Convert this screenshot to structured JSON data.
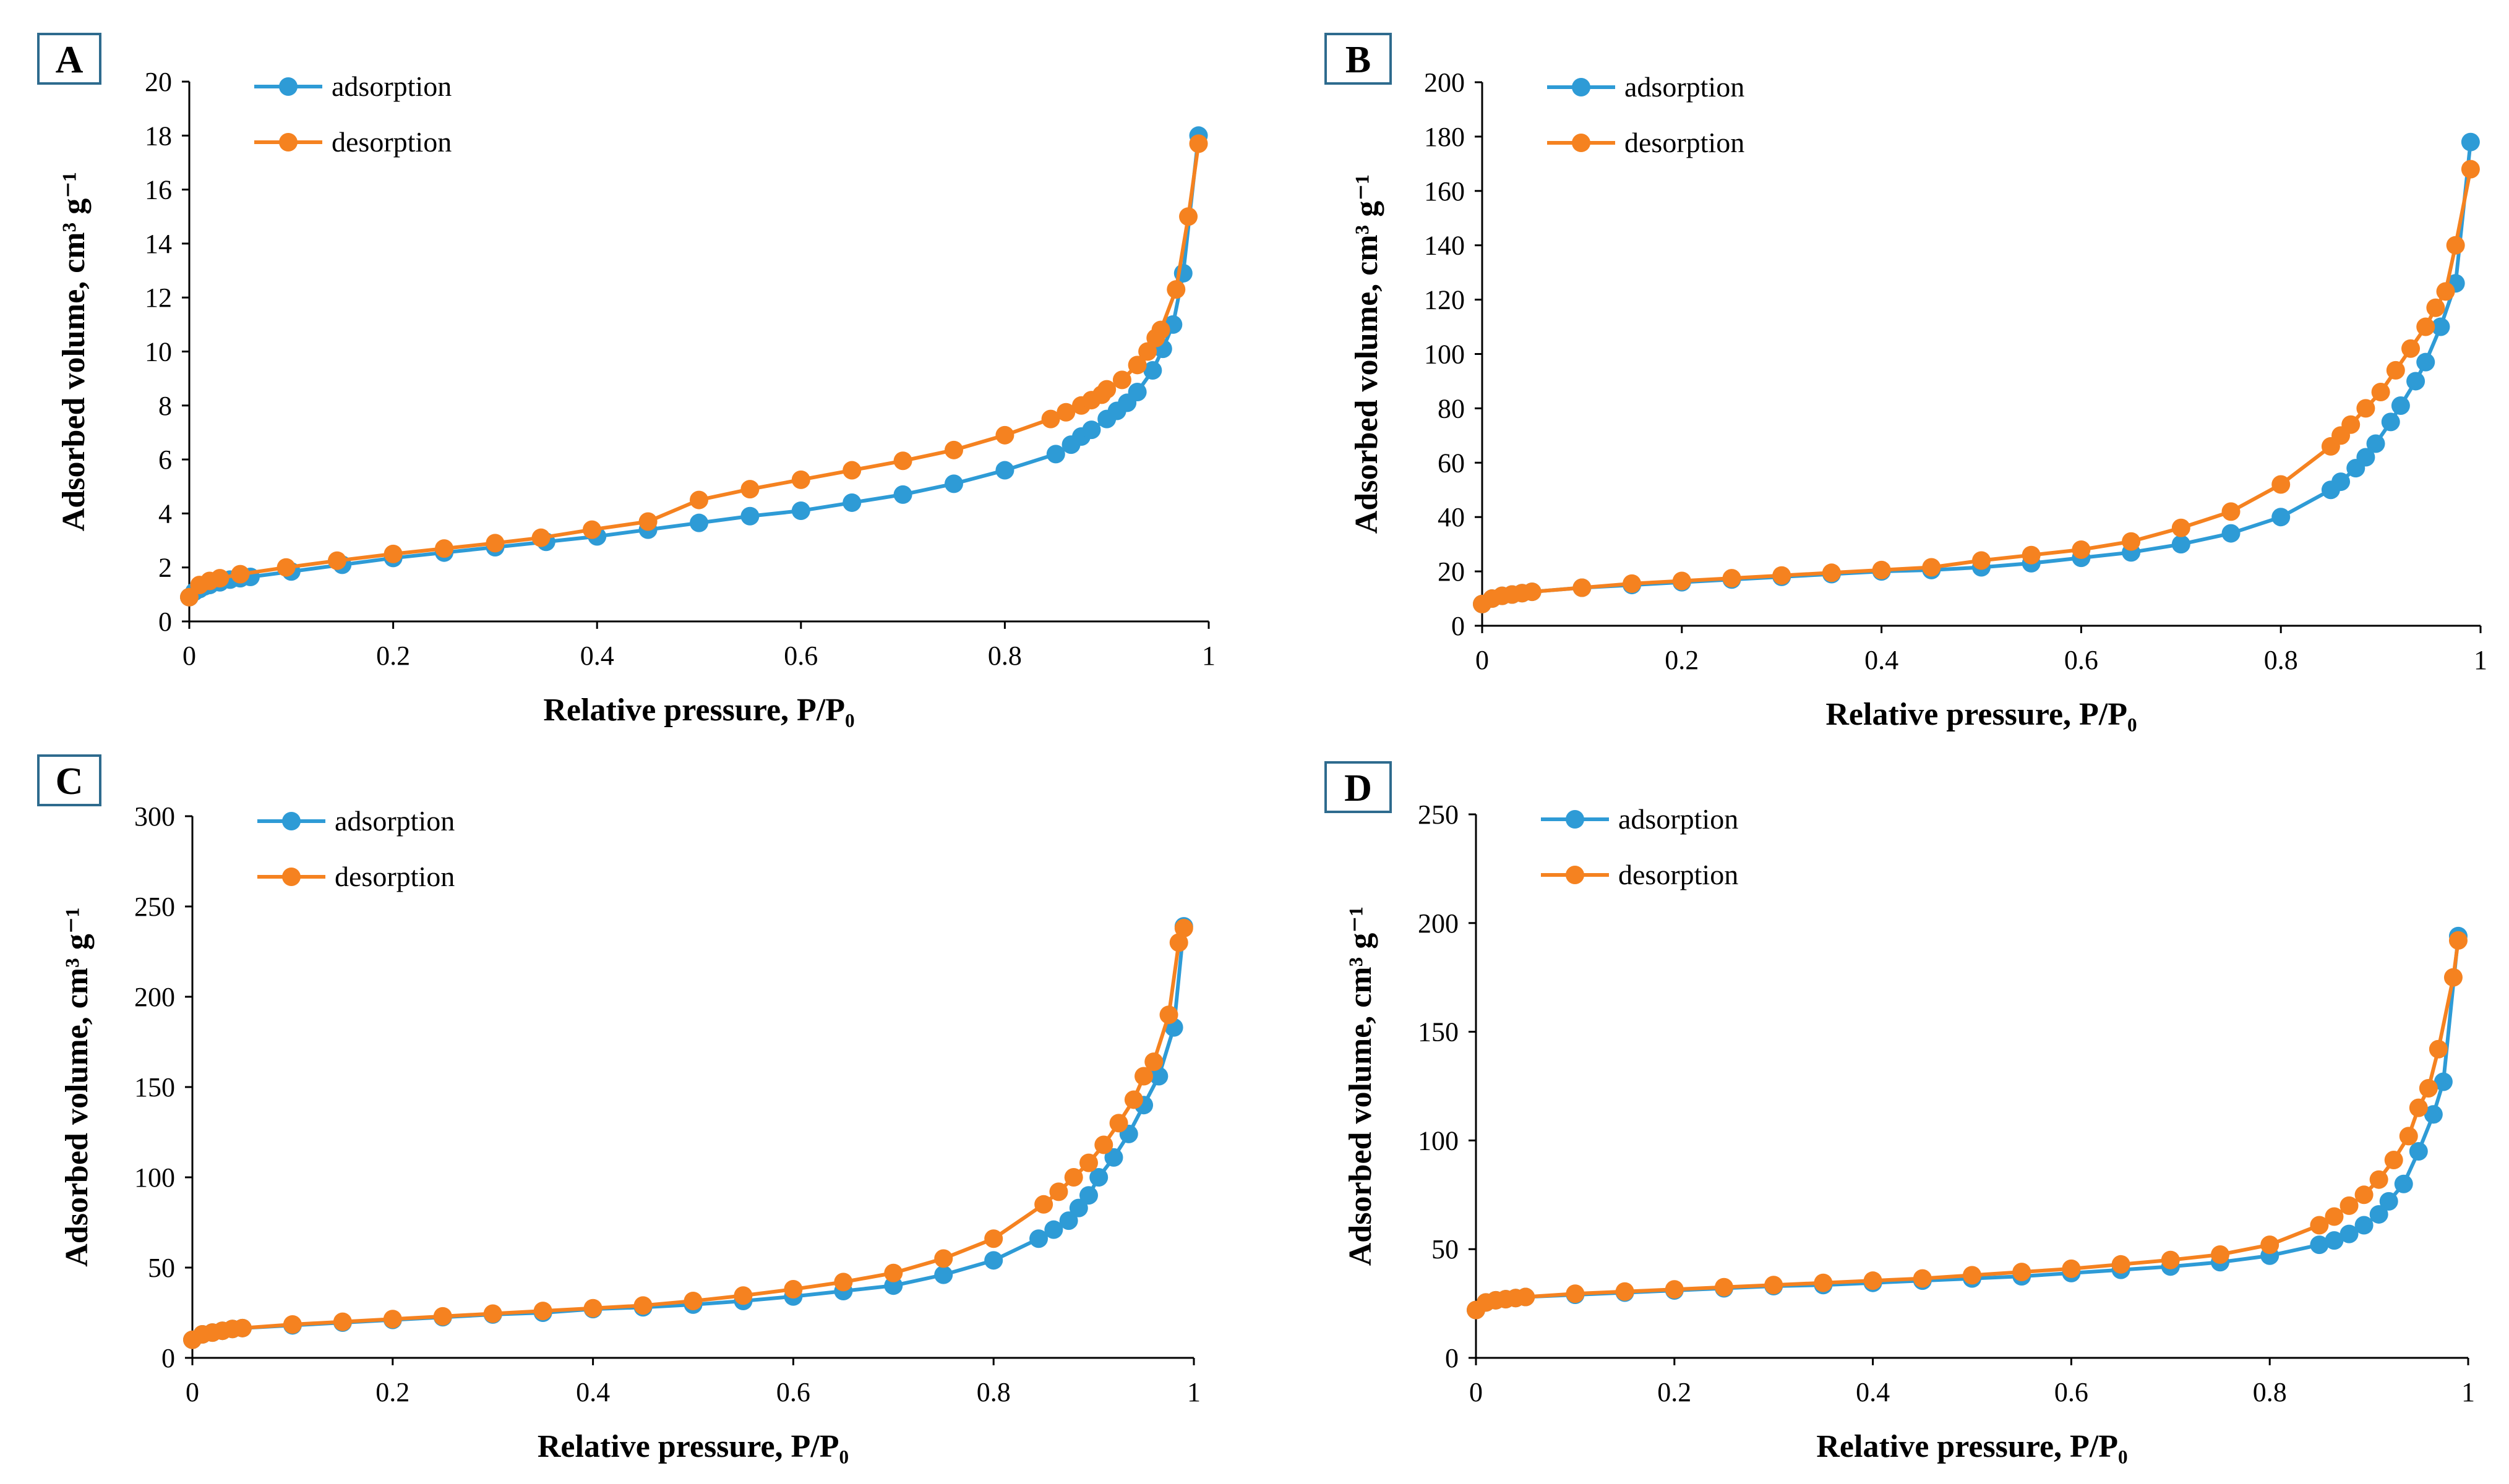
{
  "colors": {
    "adsorption": "#2e9bd6",
    "desorption": "#f58220"
  },
  "chart_data": [
    {
      "panel": "A",
      "type": "line",
      "xlabel": "Relative pressure, P/P₀",
      "ylabel": "Adsorbed volume, cm³ g⁻¹",
      "xlim": [
        0,
        1
      ],
      "ylim": [
        0,
        20
      ],
      "xticks": [
        0,
        0.2,
        0.4,
        0.6,
        0.8,
        1
      ],
      "xtick_labels": [
        "0",
        "0.2",
        "0.4",
        "0.6",
        "0.8",
        "1"
      ],
      "yticks": [
        0,
        2,
        4,
        6,
        8,
        10,
        12,
        14,
        16,
        18,
        20
      ],
      "ytick_labels": [
        "0",
        "2",
        "4",
        "6",
        "8",
        "10",
        "12",
        "14",
        "16",
        "18",
        "20"
      ],
      "legend_position": "top-left",
      "series": [
        {
          "name": "adsorption",
          "x": [
            0,
            0.005,
            0.01,
            0.015,
            0.02,
            0.03,
            0.04,
            0.05,
            0.06,
            0.1,
            0.15,
            0.2,
            0.25,
            0.3,
            0.35,
            0.4,
            0.45,
            0.5,
            0.55,
            0.6,
            0.65,
            0.7,
            0.75,
            0.8,
            0.85,
            0.865,
            0.875,
            0.885,
            0.9,
            0.91,
            0.92,
            0.93,
            0.945,
            0.955,
            0.965,
            0.975,
            0.99
          ],
          "y": [
            0.9,
            1.1,
            1.2,
            1.3,
            1.35,
            1.45,
            1.55,
            1.6,
            1.65,
            1.85,
            2.1,
            2.35,
            2.55,
            2.75,
            2.95,
            3.15,
            3.4,
            3.65,
            3.9,
            4.1,
            4.4,
            4.7,
            5.1,
            5.6,
            6.2,
            6.55,
            6.85,
            7.1,
            7.5,
            7.8,
            8.1,
            8.5,
            9.3,
            10.1,
            11.0,
            12.9,
            18.0
          ]
        },
        {
          "name": "desorption",
          "x": [
            0,
            0.01,
            0.02,
            0.03,
            0.05,
            0.095,
            0.145,
            0.2,
            0.25,
            0.3,
            0.345,
            0.395,
            0.45,
            0.5,
            0.55,
            0.6,
            0.65,
            0.7,
            0.75,
            0.8,
            0.845,
            0.86,
            0.875,
            0.885,
            0.895,
            0.9,
            0.915,
            0.93,
            0.94,
            0.948,
            0.953,
            0.968,
            0.98,
            0.99
          ],
          "y": [
            0.9,
            1.35,
            1.5,
            1.6,
            1.75,
            2.0,
            2.25,
            2.5,
            2.7,
            2.9,
            3.1,
            3.4,
            3.7,
            4.5,
            4.9,
            5.25,
            5.6,
            5.95,
            6.35,
            6.9,
            7.5,
            7.75,
            8.0,
            8.2,
            8.4,
            8.6,
            8.95,
            9.5,
            10.0,
            10.5,
            10.8,
            12.3,
            15.0,
            17.7
          ]
        }
      ]
    },
    {
      "panel": "B",
      "type": "line",
      "xlabel": "Relative pressure, P/P₀",
      "ylabel": "Adsorbed volume, cm³ g⁻¹",
      "xlim": [
        0,
        1
      ],
      "ylim": [
        0,
        200
      ],
      "xticks": [
        0,
        0.2,
        0.4,
        0.6,
        0.8,
        1
      ],
      "xtick_labels": [
        "0",
        "0.2",
        "0.4",
        "0.6",
        "0.8",
        "1"
      ],
      "yticks": [
        0,
        20,
        40,
        60,
        80,
        100,
        120,
        140,
        160,
        180,
        200
      ],
      "ytick_labels": [
        "0",
        "20",
        "40",
        "60",
        "80",
        "100",
        "120",
        "140",
        "160",
        "180",
        "200"
      ],
      "legend_position": "top-left",
      "series": [
        {
          "name": "adsorption",
          "x": [
            0,
            0.01,
            0.02,
            0.03,
            0.04,
            0.05,
            0.1,
            0.15,
            0.2,
            0.25,
            0.3,
            0.35,
            0.4,
            0.45,
            0.5,
            0.55,
            0.6,
            0.65,
            0.7,
            0.75,
            0.8,
            0.85,
            0.86,
            0.875,
            0.885,
            0.895,
            0.91,
            0.92,
            0.935,
            0.945,
            0.96,
            0.975,
            0.99
          ],
          "y": [
            8,
            10,
            11,
            11.5,
            12,
            12.5,
            14,
            15,
            16,
            17,
            18,
            19,
            20,
            20.5,
            21.5,
            23,
            25,
            27,
            30,
            34,
            40,
            50,
            53,
            58,
            62,
            67,
            75,
            81,
            90,
            97,
            110,
            126,
            178
          ]
        },
        {
          "name": "desorption",
          "x": [
            0,
            0.01,
            0.02,
            0.03,
            0.04,
            0.05,
            0.1,
            0.15,
            0.2,
            0.25,
            0.3,
            0.35,
            0.4,
            0.45,
            0.5,
            0.55,
            0.6,
            0.65,
            0.7,
            0.75,
            0.8,
            0.85,
            0.86,
            0.87,
            0.885,
            0.9,
            0.915,
            0.93,
            0.945,
            0.955,
            0.965,
            0.975,
            0.99
          ],
          "y": [
            8,
            10,
            11,
            11.5,
            12,
            12.5,
            14,
            15.5,
            16.5,
            17.5,
            18.5,
            19.5,
            20.5,
            21.5,
            24,
            26,
            28,
            31,
            36,
            42,
            52,
            66,
            70,
            74,
            80,
            86,
            94,
            102,
            110,
            117,
            123,
            140,
            168
          ]
        }
      ]
    },
    {
      "panel": "C",
      "type": "line",
      "xlabel": "Relative pressure, P/P₀",
      "ylabel": "Adsorbed volume, cm³ g⁻¹",
      "xlim": [
        0,
        1
      ],
      "ylim": [
        0,
        300
      ],
      "xticks": [
        0,
        0.2,
        0.4,
        0.6,
        0.8,
        1
      ],
      "xtick_labels": [
        "0",
        "0.2",
        "0.4",
        "0.6",
        "0.8",
        "1"
      ],
      "yticks": [
        0,
        50,
        100,
        150,
        200,
        250,
        300
      ],
      "ytick_labels": [
        "0",
        "50",
        "100",
        "150",
        "200",
        "250",
        "300"
      ],
      "legend_position": "top-left",
      "series": [
        {
          "name": "adsorption",
          "x": [
            0,
            0.01,
            0.02,
            0.03,
            0.04,
            0.05,
            0.1,
            0.15,
            0.2,
            0.25,
            0.3,
            0.35,
            0.4,
            0.45,
            0.5,
            0.55,
            0.6,
            0.65,
            0.7,
            0.75,
            0.8,
            0.845,
            0.86,
            0.875,
            0.885,
            0.895,
            0.905,
            0.92,
            0.935,
            0.95,
            0.965,
            0.98,
            0.99
          ],
          "y": [
            10,
            13,
            14,
            15,
            16,
            16.5,
            18,
            19.5,
            21,
            22.5,
            24,
            25,
            27,
            28,
            29.5,
            31.5,
            34,
            37,
            40,
            46,
            54,
            66,
            71,
            76,
            83,
            90,
            100,
            111,
            124,
            140,
            156,
            183,
            239
          ]
        },
        {
          "name": "desorption",
          "x": [
            0,
            0.01,
            0.02,
            0.03,
            0.04,
            0.05,
            0.1,
            0.15,
            0.2,
            0.25,
            0.3,
            0.35,
            0.4,
            0.45,
            0.5,
            0.55,
            0.6,
            0.65,
            0.7,
            0.75,
            0.8,
            0.85,
            0.865,
            0.88,
            0.895,
            0.91,
            0.925,
            0.94,
            0.95,
            0.96,
            0.975,
            0.985,
            0.99
          ],
          "y": [
            10,
            13,
            14,
            15,
            16,
            16.5,
            18.5,
            20,
            21.5,
            23,
            24.5,
            26,
            27.5,
            29,
            31.5,
            34.5,
            38,
            42,
            47,
            55,
            66,
            85,
            92,
            100,
            108,
            118,
            130,
            143,
            156,
            164,
            190,
            230,
            238
          ]
        }
      ]
    },
    {
      "panel": "D",
      "type": "line",
      "xlabel": "Relative pressure, P/P₀",
      "ylabel": "Adsorbed volume, cm³ g⁻¹",
      "xlim": [
        0,
        1
      ],
      "ylim": [
        0,
        250
      ],
      "xticks": [
        0,
        0.2,
        0.4,
        0.6,
        0.8,
        1
      ],
      "xtick_labels": [
        "0",
        "0.2",
        "0.4",
        "0.6",
        "0.8",
        "1"
      ],
      "yticks": [
        0,
        50,
        100,
        150,
        200,
        250
      ],
      "ytick_labels": [
        "0",
        "50",
        "100",
        "150",
        "200",
        "250"
      ],
      "legend_position": "top-left",
      "series": [
        {
          "name": "adsorption",
          "x": [
            0,
            0.01,
            0.02,
            0.03,
            0.04,
            0.05,
            0.1,
            0.15,
            0.2,
            0.25,
            0.3,
            0.35,
            0.4,
            0.45,
            0.5,
            0.55,
            0.6,
            0.65,
            0.7,
            0.75,
            0.8,
            0.85,
            0.865,
            0.88,
            0.895,
            0.91,
            0.92,
            0.935,
            0.95,
            0.965,
            0.975,
            0.99
          ],
          "y": [
            22,
            25.5,
            26.5,
            27,
            27.5,
            28,
            29,
            30,
            31,
            32,
            33,
            33.5,
            34.5,
            35.5,
            36.5,
            37.5,
            39,
            40.5,
            42,
            44,
            47,
            52,
            54,
            57,
            61,
            66,
            72,
            80,
            95,
            112,
            127,
            194
          ]
        },
        {
          "name": "desorption",
          "x": [
            0,
            0.01,
            0.02,
            0.03,
            0.04,
            0.05,
            0.1,
            0.15,
            0.2,
            0.25,
            0.3,
            0.35,
            0.4,
            0.45,
            0.5,
            0.55,
            0.6,
            0.65,
            0.7,
            0.75,
            0.8,
            0.85,
            0.865,
            0.88,
            0.895,
            0.91,
            0.925,
            0.94,
            0.95,
            0.96,
            0.97,
            0.985,
            0.99
          ],
          "y": [
            22,
            25.5,
            26.5,
            27,
            27.5,
            28,
            29.5,
            30.5,
            31.5,
            32.5,
            33.5,
            34.5,
            35.5,
            36.5,
            38,
            39.5,
            41,
            43,
            45,
            47.5,
            52,
            61,
            65,
            70,
            75,
            82,
            91,
            102,
            115,
            124,
            142,
            175,
            192
          ]
        }
      ]
    }
  ]
}
